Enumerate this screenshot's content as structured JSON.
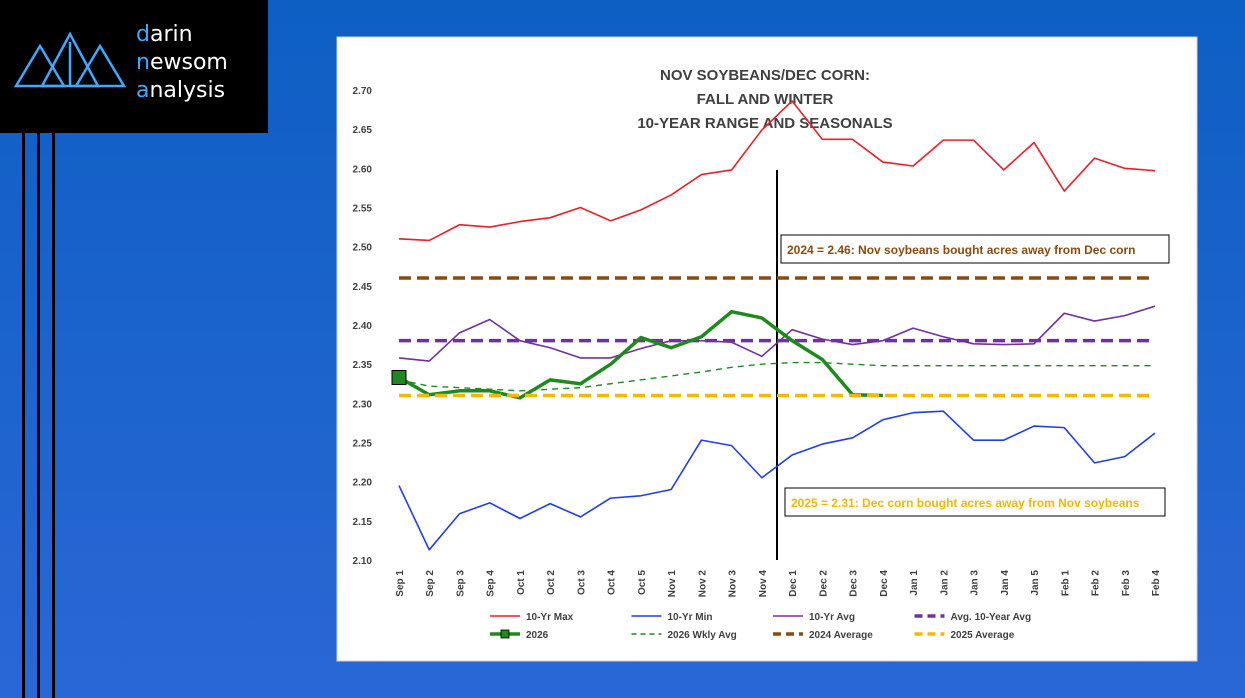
{
  "logo": [
    "darin",
    "newsom",
    "analysis"
  ],
  "chart_data": {
    "type": "line",
    "title": [
      "NOV SOYBEANS/DEC CORN:",
      "FALL AND WINTER",
      "10-YEAR RANGE AND SEASONALS"
    ],
    "categories": [
      "Sep 1",
      "Sep 2",
      "Sep 3",
      "Sep 4",
      "Oct 1",
      "Oct 2",
      "Oct 3",
      "Oct 4",
      "Oct 5",
      "Nov 1",
      "Nov 2",
      "Nov 3",
      "Nov 4",
      "Dec 1",
      "Dec 2",
      "Dec 3",
      "Dec 4",
      "Jan 1",
      "Jan 2",
      "Jan 3",
      "Jan 4",
      "Jan 5",
      "Feb 1",
      "Feb 2",
      "Feb 3",
      "Feb 4"
    ],
    "ylim": [
      2.1,
      2.7
    ],
    "yticks": [
      {
        "value": 2.1,
        "label": "2.10"
      },
      2.15,
      {
        "value": 2.2,
        "label": "2.20"
      },
      2.25,
      {
        "value": 2.3,
        "label": "2.30"
      },
      2.35,
      {
        "value": 2.4,
        "label": "2.40"
      },
      2.45,
      {
        "value": 2.5,
        "label": "2.50"
      },
      2.55,
      {
        "value": 2.6,
        "label": "2.60"
      },
      2.65,
      {
        "value": 2.7,
        "label": "2.70"
      }
    ],
    "grid": false,
    "series": [
      {
        "name": "10-Yr Max",
        "color": "#e8202a",
        "style": "solid",
        "values": [
          2.51,
          2.508,
          2.528,
          2.525,
          2.532,
          2.537,
          2.55,
          2.533,
          2.547,
          2.566,
          2.592,
          2.598,
          2.649,
          2.686,
          2.637,
          2.637,
          2.608,
          2.603,
          2.636,
          2.636,
          2.598,
          2.633,
          2.571,
          2.613,
          2.6,
          2.597
        ]
      },
      {
        "name": "10-Yr Min",
        "color": "#1f3fe0",
        "style": "solid",
        "values": [
          2.195,
          2.113,
          2.159,
          2.173,
          2.153,
          2.172,
          2.155,
          2.179,
          2.182,
          2.19,
          2.253,
          2.246,
          2.205,
          2.234,
          2.248,
          2.256,
          2.279,
          2.288,
          2.29,
          2.253,
          2.253,
          2.271,
          2.269,
          2.224,
          2.232,
          2.262
        ]
      },
      {
        "name": "10-Yr Avg",
        "color": "#7030a0",
        "style": "solid",
        "values": [
          2.358,
          2.354,
          2.39,
          2.407,
          2.38,
          2.371,
          2.358,
          2.358,
          2.37,
          2.38,
          2.38,
          2.378,
          2.36,
          2.394,
          2.382,
          2.375,
          2.38,
          2.396,
          2.385,
          2.376,
          2.375,
          2.376,
          2.415,
          2.405,
          2.412,
          2.424
        ]
      },
      {
        "name": "Avg. 10-Year Avg",
        "color": "#7030a0",
        "style": "dashed",
        "values": [
          2.38,
          2.38,
          2.38,
          2.38,
          2.38,
          2.38,
          2.38,
          2.38,
          2.38,
          2.38,
          2.38,
          2.38,
          2.38,
          2.38,
          2.38,
          2.38,
          2.38,
          2.38,
          2.38,
          2.38,
          2.38,
          2.38,
          2.38,
          2.38,
          2.38,
          2.38
        ]
      },
      {
        "name": "2026",
        "color": "#1e8a1e",
        "style": "thick",
        "marker": "square",
        "values": [
          2.333,
          2.311,
          2.316,
          2.316,
          2.307,
          2.33,
          2.325,
          2.35,
          2.384,
          2.371,
          2.385,
          2.417,
          2.409,
          2.38,
          2.356,
          2.311,
          2.31,
          null,
          null,
          null,
          null,
          null,
          null,
          null,
          null,
          null
        ]
      },
      {
        "name": "2026 Wkly Avg",
        "color": "#1e8a1e",
        "style": "thin-dashed",
        "values": [
          2.33,
          2.322,
          2.32,
          2.318,
          2.316,
          2.318,
          2.32,
          2.325,
          2.33,
          2.335,
          2.34,
          2.346,
          2.35,
          2.352,
          2.352,
          2.35,
          2.348,
          2.348,
          2.348,
          2.348,
          2.348,
          2.348,
          2.348,
          2.348,
          2.348,
          2.348
        ]
      },
      {
        "name": "2024 Average",
        "color": "#8a4b0f",
        "style": "dashed",
        "values": [
          2.46,
          2.46,
          2.46,
          2.46,
          2.46,
          2.46,
          2.46,
          2.46,
          2.46,
          2.46,
          2.46,
          2.46,
          2.46,
          2.46,
          2.46,
          2.46,
          2.46,
          2.46,
          2.46,
          2.46,
          2.46,
          2.46,
          2.46,
          2.46,
          2.46,
          2.46
        ]
      },
      {
        "name": "2025 Average",
        "color": "#f5b800",
        "style": "dashed",
        "values": [
          2.31,
          2.31,
          2.31,
          2.31,
          2.31,
          2.31,
          2.31,
          2.31,
          2.31,
          2.31,
          2.31,
          2.31,
          2.31,
          2.31,
          2.31,
          2.31,
          2.31,
          2.31,
          2.31,
          2.31,
          2.31,
          2.31,
          2.31,
          2.31,
          2.31,
          2.31
        ]
      }
    ],
    "annotations": [
      {
        "text": "2024 = 2.46: Nov soybeans bought acres away from Dec corn",
        "color": "#8a4b0f"
      },
      {
        "text": "2025 = 2.31: Dec corn bought acres away from Nov soybeans",
        "color": "#f5b800"
      }
    ]
  }
}
